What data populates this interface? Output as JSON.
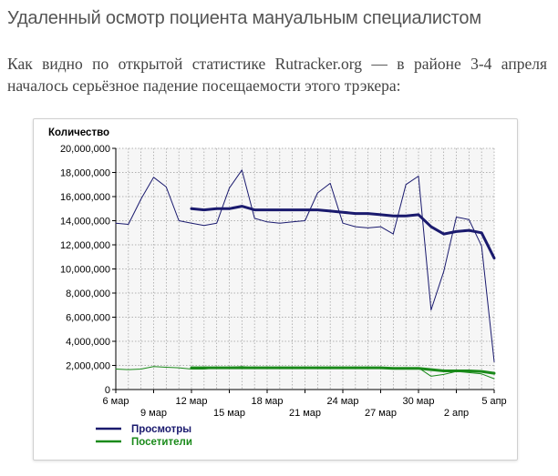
{
  "page": {
    "headline": "Удаленный осмотр поциента мануальным специалистом",
    "lead": "Как видно по открытой статистике Rutracker.org — в районе 3-4 апреля началось серьёзное падение посещаемости этого трэкера:"
  },
  "chart_data": {
    "type": "line",
    "ylabel": "Количество",
    "xlabel": "",
    "ylim": [
      0,
      20000000
    ],
    "yticks": [
      0,
      2000000,
      4000000,
      6000000,
      8000000,
      10000000,
      12000000,
      14000000,
      16000000,
      18000000,
      20000000
    ],
    "ytick_labels": [
      "0",
      "2,000,000",
      "4,000,000",
      "6,000,000",
      "8,000,000",
      "10,000,000",
      "12,000,000",
      "14,000,000",
      "16,000,000",
      "18,000,000",
      "20,000,000"
    ],
    "xticks": [
      {
        "day": 0,
        "label": "6 мар",
        "row": 0
      },
      {
        "day": 3,
        "label": "9 мар",
        "row": 1
      },
      {
        "day": 6,
        "label": "12 мар",
        "row": 0
      },
      {
        "day": 9,
        "label": "15 мар",
        "row": 1
      },
      {
        "day": 12,
        "label": "18 мар",
        "row": 0
      },
      {
        "day": 15,
        "label": "21 мар",
        "row": 1
      },
      {
        "day": 18,
        "label": "24 мар",
        "row": 0
      },
      {
        "day": 21,
        "label": "27 мар",
        "row": 1
      },
      {
        "day": 24,
        "label": "30 мар",
        "row": 0
      },
      {
        "day": 27,
        "label": "2 апр",
        "row": 1
      },
      {
        "day": 30,
        "label": "5 апр",
        "row": 0
      }
    ],
    "grid": true,
    "legend_position": "bottom-left",
    "series": [
      {
        "name": "Просмотры",
        "color": "#1a1a6e",
        "style": "thin",
        "x": [
          0,
          1,
          2,
          3,
          4,
          5,
          6,
          7,
          8,
          9,
          10,
          11,
          12,
          13,
          14,
          15,
          16,
          17,
          18,
          19,
          20,
          21,
          22,
          23,
          24,
          25,
          26,
          27,
          28,
          29,
          30
        ],
        "values": [
          13800000,
          13700000,
          15800000,
          17600000,
          16800000,
          14000000,
          13800000,
          13600000,
          13800000,
          16700000,
          18200000,
          14200000,
          13900000,
          13800000,
          13900000,
          14000000,
          16300000,
          17100000,
          13800000,
          13500000,
          13400000,
          13500000,
          12900000,
          17000000,
          17700000,
          6600000,
          9800000,
          14300000,
          14100000,
          11900000,
          2300000
        ]
      },
      {
        "name": "Просмотры",
        "color": "#1a1a6e",
        "style": "thick",
        "x": [
          6,
          7,
          8,
          9,
          10,
          11,
          12,
          13,
          14,
          15,
          16,
          17,
          18,
          19,
          20,
          21,
          22,
          23,
          24,
          25,
          26,
          27,
          28,
          29,
          30
        ],
        "values": [
          15000000,
          14900000,
          15000000,
          15000000,
          15200000,
          14900000,
          14900000,
          14900000,
          14900000,
          14900000,
          14900000,
          14800000,
          14700000,
          14600000,
          14600000,
          14500000,
          14400000,
          14400000,
          14500000,
          13500000,
          12900000,
          13100000,
          13200000,
          13000000,
          10900000
        ]
      },
      {
        "name": "Посетители",
        "color": "#1a8a1a",
        "style": "thin",
        "x": [
          0,
          1,
          2,
          3,
          4,
          5,
          6,
          7,
          8,
          9,
          10,
          11,
          12,
          13,
          14,
          15,
          16,
          17,
          18,
          19,
          20,
          21,
          22,
          23,
          24,
          25,
          26,
          27,
          28,
          29,
          30
        ],
        "values": [
          1700000,
          1650000,
          1700000,
          1900000,
          1850000,
          1800000,
          1700000,
          1700000,
          1800000,
          1850000,
          1900000,
          1800000,
          1800000,
          1750000,
          1800000,
          1800000,
          1850000,
          1850000,
          1800000,
          1750000,
          1800000,
          1800000,
          1700000,
          1700000,
          1800000,
          1100000,
          1250000,
          1500000,
          1400000,
          1300000,
          900000
        ]
      },
      {
        "name": "Посетители",
        "color": "#1a8a1a",
        "style": "thick",
        "x": [
          6,
          7,
          8,
          9,
          10,
          11,
          12,
          13,
          14,
          15,
          16,
          17,
          18,
          19,
          20,
          21,
          22,
          23,
          24,
          25,
          26,
          27,
          28,
          29,
          30
        ],
        "values": [
          1800000,
          1800000,
          1800000,
          1800000,
          1800000,
          1800000,
          1800000,
          1800000,
          1800000,
          1800000,
          1800000,
          1800000,
          1800000,
          1800000,
          1800000,
          1800000,
          1750000,
          1750000,
          1750000,
          1650000,
          1550000,
          1550000,
          1550000,
          1500000,
          1350000
        ]
      }
    ],
    "legend": [
      {
        "label": "Просмотры",
        "color": "#1a1a6e"
      },
      {
        "label": "Посетители",
        "color": "#1a8a1a"
      }
    ]
  }
}
